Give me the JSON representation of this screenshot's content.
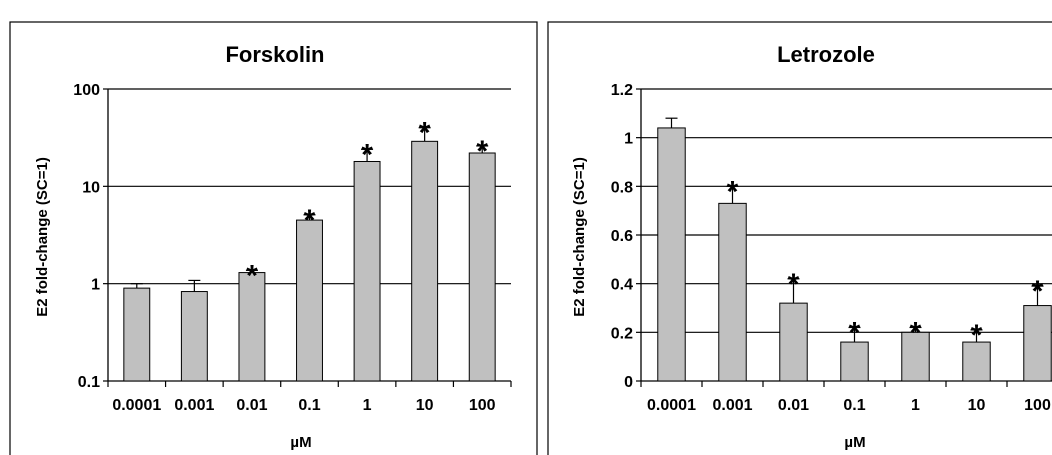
{
  "chart_data": [
    {
      "type": "bar",
      "title": "Forskolin",
      "xlabel": "µM",
      "ylabel": "E2 fold-change (SC=1)",
      "yscale": "log",
      "ylim": [
        0.1,
        100
      ],
      "yticks": [
        "0.1",
        "1",
        "10",
        "100"
      ],
      "ytick_values": [
        0.1,
        1,
        10,
        100
      ],
      "grid": true,
      "categories": [
        "0.0001",
        "0.001",
        "0.01",
        "0.1",
        "1",
        "10",
        "100"
      ],
      "values": [
        0.9,
        0.83,
        1.3,
        4.5,
        18,
        29,
        22
      ],
      "errors": [
        0.1,
        0.25,
        0.07,
        0.6,
        6,
        11,
        4
      ],
      "significant": [
        false,
        false,
        true,
        true,
        true,
        true,
        true
      ],
      "significance_marker": "*",
      "bar_color": "#c0c0c0"
    },
    {
      "type": "bar",
      "title": "Letrozole",
      "xlabel": "µM",
      "ylabel": "E2 fold-change (SC=1)",
      "yscale": "linear",
      "ylim": [
        0,
        1.2
      ],
      "yticks": [
        "0",
        "0.2",
        "0.4",
        "0.6",
        "0.8",
        "1",
        "1.2"
      ],
      "ytick_values": [
        0,
        0.2,
        0.4,
        0.6,
        0.8,
        1,
        1.2
      ],
      "grid": true,
      "categories": [
        "0.0001",
        "0.001",
        "0.01",
        "0.1",
        "1",
        "10",
        "100"
      ],
      "values": [
        1.04,
        0.73,
        0.32,
        0.16,
        0.2,
        0.16,
        0.31
      ],
      "errors": [
        0.04,
        0.07,
        0.1,
        0.06,
        0.02,
        0.05,
        0.08
      ],
      "significant": [
        false,
        true,
        true,
        true,
        true,
        true,
        true
      ],
      "significance_marker": "*",
      "bar_color": "#c0c0c0"
    }
  ]
}
